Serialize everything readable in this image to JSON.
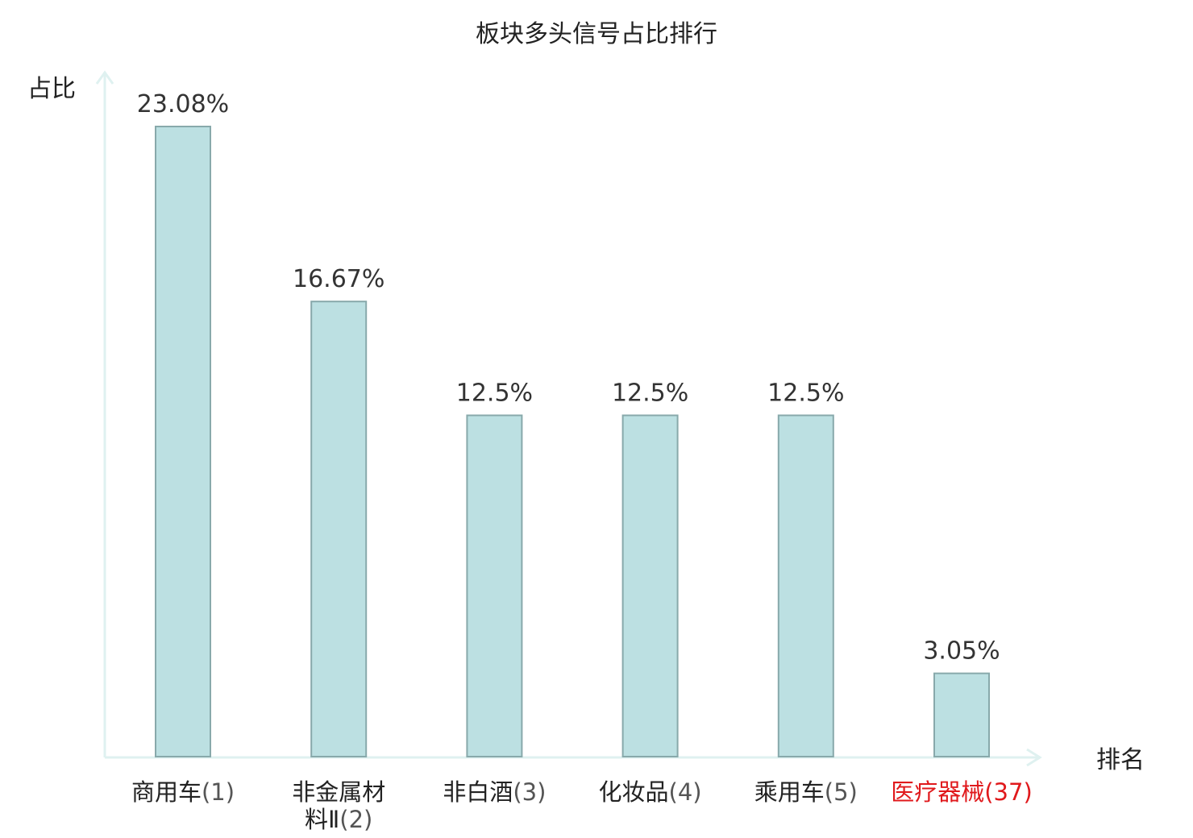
{
  "chart_data": {
    "type": "bar",
    "title": "板块多头信号占比排行",
    "ylabel": "占比",
    "xlabel": "排名",
    "categories": [
      {
        "name_lines": [
          "商用车"
        ],
        "rank": "(1)",
        "highlight": false
      },
      {
        "name_lines": [
          "非金属材",
          "料Ⅱ"
        ],
        "rank": "(2)",
        "highlight": false
      },
      {
        "name_lines": [
          "非白酒"
        ],
        "rank": "(3)",
        "highlight": false
      },
      {
        "name_lines": [
          "化妆品"
        ],
        "rank": "(4)",
        "highlight": false
      },
      {
        "name_lines": [
          "乘用车"
        ],
        "rank": "(5)",
        "highlight": false
      },
      {
        "name_lines": [
          "医疗器械"
        ],
        "rank": "(37)",
        "highlight": true
      }
    ],
    "values": [
      23.08,
      16.67,
      12.5,
      12.5,
      12.5,
      3.05
    ],
    "value_labels": [
      "23.08%",
      "16.67%",
      "12.5%",
      "12.5%",
      "12.5%",
      "3.05%"
    ],
    "ylim": [
      0,
      23.08
    ],
    "grid": false,
    "colors": {
      "bar_fill": "#bce0e2",
      "bar_stroke": "#88a9ab",
      "axis": "#dff1f0",
      "highlight": "#e0191c"
    }
  }
}
